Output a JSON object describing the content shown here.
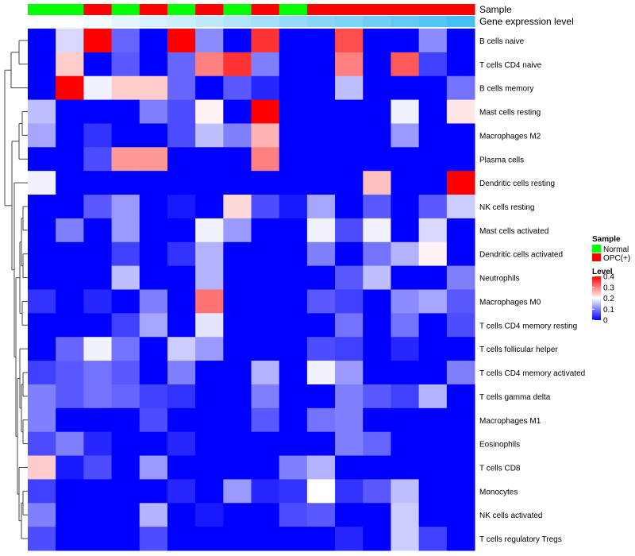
{
  "chart_data": {
    "type": "heatmap",
    "title": "",
    "annotation_labels": [
      "Sample",
      "Gene expression level"
    ],
    "columns": [
      {
        "sample": "Normal",
        "expr": 0.0
      },
      {
        "sample": "Normal",
        "expr": 0.0
      },
      {
        "sample": "OPC(+)",
        "expr": 0.04
      },
      {
        "sample": "Normal",
        "expr": 0.08
      },
      {
        "sample": "OPC(+)",
        "expr": 0.12
      },
      {
        "sample": "Normal",
        "expr": 0.15
      },
      {
        "sample": "OPC(+)",
        "expr": 0.19
      },
      {
        "sample": "Normal",
        "expr": 0.23
      },
      {
        "sample": "OPC(+)",
        "expr": 0.27
      },
      {
        "sample": "Normal",
        "expr": 0.31
      },
      {
        "sample": "OPC(+)",
        "expr": 0.35
      },
      {
        "sample": "OPC(+)",
        "expr": 0.38
      },
      {
        "sample": "OPC(+)",
        "expr": 0.42
      },
      {
        "sample": "OPC(+)",
        "expr": 0.46
      },
      {
        "sample": "OPC(+)",
        "expr": 0.5
      },
      {
        "sample": "OPC(+)",
        "expr": 0.54
      }
    ],
    "rows": [
      "B cells naive",
      "T cells CD4 naive",
      "B cells memory",
      "Mast cells resting",
      "Macrophages M2",
      "Plasma cells",
      "Dendritic cells resting",
      "NK cells resting",
      "Mast cells activated",
      "Dendritic cells activated",
      "Neutrophils",
      "Macrophages M0",
      "T cells CD4 memory resting",
      "T cells follicular helper",
      "T cells CD4 memory activated",
      "T cells gamma delta",
      "Macrophages M1",
      "Eosinophils",
      "T cells CD8",
      "Monocytes",
      "NK cells activated",
      "T cells regulatory  Tregs"
    ],
    "values": [
      [
        0.0,
        0.17,
        0.4,
        0.08,
        0.0,
        0.4,
        0.11,
        0.0,
        0.36,
        0.0,
        0.0,
        0.34,
        0.0,
        0.0,
        0.11,
        0.0
      ],
      [
        0.0,
        0.24,
        0.0,
        0.07,
        0.0,
        0.08,
        0.3,
        0.36,
        0.1,
        0.0,
        0.0,
        0.3,
        0.0,
        0.33,
        0.05,
        0.0
      ],
      [
        0.0,
        0.4,
        0.19,
        0.24,
        0.24,
        0.08,
        0.0,
        0.07,
        0.03,
        0.0,
        0.0,
        0.15,
        0.0,
        0.0,
        0.0,
        0.09
      ],
      [
        0.15,
        0.0,
        0.0,
        0.0,
        0.1,
        0.06,
        0.21,
        0.0,
        0.4,
        0.0,
        0.0,
        0.0,
        0.0,
        0.19,
        0.0,
        0.22
      ],
      [
        0.13,
        0.0,
        0.04,
        0.0,
        0.0,
        0.06,
        0.15,
        0.1,
        0.26,
        0.0,
        0.0,
        0.0,
        0.0,
        0.12,
        0.0,
        0.0
      ],
      [
        0.0,
        0.0,
        0.06,
        0.28,
        0.28,
        0.0,
        0.0,
        0.0,
        0.3,
        0.0,
        0.0,
        0.0,
        0.0,
        0.0,
        0.0,
        0.0
      ],
      [
        0.19,
        0.0,
        0.0,
        0.0,
        0.0,
        0.0,
        0.0,
        0.0,
        0.0,
        0.0,
        0.0,
        0.0,
        0.25,
        0.0,
        0.0,
        0.4
      ],
      [
        0.0,
        0.0,
        0.07,
        0.12,
        0.0,
        0.02,
        0.0,
        0.23,
        0.06,
        0.02,
        0.13,
        0.0,
        0.07,
        0.0,
        0.07,
        0.16
      ],
      [
        0.0,
        0.1,
        0.0,
        0.12,
        0.0,
        0.0,
        0.19,
        0.12,
        0.0,
        0.0,
        0.19,
        0.06,
        0.19,
        0.0,
        0.17,
        0.0
      ],
      [
        0.0,
        0.0,
        0.0,
        0.05,
        0.0,
        0.04,
        0.14,
        0.0,
        0.0,
        0.0,
        0.1,
        0.0,
        0.09,
        0.14,
        0.21,
        0.0
      ],
      [
        0.0,
        0.0,
        0.0,
        0.15,
        0.0,
        0.0,
        0.14,
        0.0,
        0.0,
        0.0,
        0.0,
        0.07,
        0.15,
        0.0,
        0.0,
        0.1
      ],
      [
        0.04,
        0.0,
        0.03,
        0.0,
        0.1,
        0.0,
        0.31,
        0.0,
        0.0,
        0.0,
        0.07,
        0.05,
        0.0,
        0.11,
        0.13,
        0.07
      ],
      [
        0.0,
        0.0,
        0.0,
        0.05,
        0.13,
        0.0,
        0.18,
        0.0,
        0.0,
        0.0,
        0.0,
        0.09,
        0.0,
        0.09,
        0.0,
        0.06
      ],
      [
        0.0,
        0.08,
        0.19,
        0.09,
        0.0,
        0.16,
        0.12,
        0.0,
        0.0,
        0.0,
        0.06,
        0.05,
        0.0,
        0.03,
        0.0,
        0.0
      ],
      [
        0.05,
        0.07,
        0.09,
        0.07,
        0.0,
        0.1,
        0.0,
        0.0,
        0.14,
        0.0,
        0.19,
        0.12,
        0.0,
        0.0,
        0.0,
        0.1
      ],
      [
        0.1,
        0.07,
        0.09,
        0.08,
        0.05,
        0.04,
        0.0,
        0.0,
        0.1,
        0.0,
        0.0,
        0.1,
        0.07,
        0.05,
        0.14,
        0.0
      ],
      [
        0.1,
        0.0,
        0.0,
        0.0,
        0.06,
        0.0,
        0.0,
        0.0,
        0.07,
        0.0,
        0.09,
        0.1,
        0.0,
        0.0,
        0.0,
        0.0
      ],
      [
        0.06,
        0.1,
        0.03,
        0.0,
        0.0,
        0.03,
        0.0,
        0.0,
        0.0,
        0.0,
        0.0,
        0.1,
        0.08,
        0.0,
        0.0,
        0.0
      ],
      [
        0.24,
        0.02,
        0.06,
        0.0,
        0.12,
        0.0,
        0.0,
        0.0,
        0.0,
        0.1,
        0.14,
        0.0,
        0.0,
        0.0,
        0.0,
        0.0
      ],
      [
        0.05,
        0.0,
        0.0,
        0.0,
        0.0,
        0.03,
        0.0,
        0.12,
        0.03,
        0.04,
        0.2,
        0.04,
        0.07,
        0.15,
        0.0,
        0.0
      ],
      [
        0.1,
        0.0,
        0.0,
        0.0,
        0.14,
        0.0,
        0.02,
        0.0,
        0.0,
        0.06,
        0.07,
        0.0,
        0.0,
        0.16,
        0.0,
        0.0
      ],
      [
        0.06,
        0.0,
        0.0,
        0.0,
        0.06,
        0.0,
        0.0,
        0.0,
        0.0,
        0.0,
        0.0,
        0.03,
        0.0,
        0.16,
        0.05,
        0.0
      ]
    ],
    "legend": {
      "sample_title": "Sample",
      "sample_entries": [
        {
          "label": "Normal",
          "color": "#00ff00"
        },
        {
          "label": "OPC(+)",
          "color": "#ff0000"
        }
      ],
      "level_title": "Level",
      "level_range": [
        0,
        0.4
      ],
      "level_ticks": [
        {
          "value": 0.4,
          "label": "0.4"
        },
        {
          "value": 0.3,
          "label": "0.3"
        },
        {
          "value": 0.2,
          "label": "0.2"
        },
        {
          "value": 0.1,
          "label": "0.1"
        },
        {
          "value": 0.0,
          "label": "0"
        }
      ],
      "placement": "right"
    },
    "colors": {
      "low": "#0000ff",
      "mid": "#ffffff",
      "high": "#ff0000",
      "expr_low": "#ffffff",
      "expr_high": "#45c0f5"
    }
  }
}
